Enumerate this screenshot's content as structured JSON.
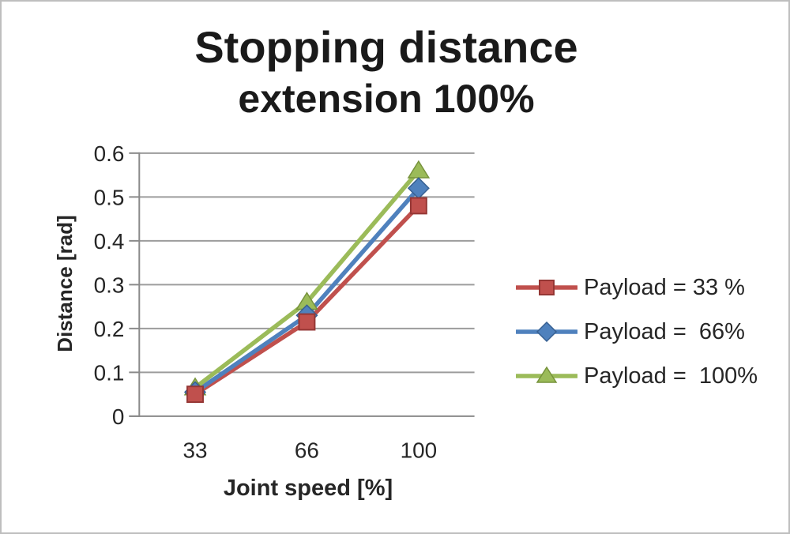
{
  "chart_data": {
    "type": "line",
    "title": "Stopping distance extension 100%",
    "title_line1": "Stopping distance",
    "title_line2": "extension 100%",
    "xlabel": "Joint speed [%]",
    "ylabel": "Distance [rad]",
    "categories": [
      "33",
      "66",
      "100"
    ],
    "ylim": [
      0,
      0.6
    ],
    "y_ticks": [
      0,
      0.1,
      0.2,
      0.3,
      0.4,
      0.5,
      0.6
    ],
    "y_tick_labels": [
      "0",
      "0.1",
      "0.2",
      "0.3",
      "0.4",
      "0.5",
      "0.6"
    ],
    "grid": true,
    "legend_position": "right",
    "series": [
      {
        "name": "Payload = 33 %",
        "marker": "square",
        "color": "#C0504D",
        "marker_border": "#953735",
        "values": [
          0.05,
          0.215,
          0.48
        ]
      },
      {
        "name": "Payload =  66%",
        "marker": "diamond",
        "color": "#4F81BD",
        "marker_border": "#376092",
        "values": [
          0.055,
          0.23,
          0.52
        ]
      },
      {
        "name": "Payload =  100%",
        "marker": "triangle",
        "color": "#9BBB59",
        "marker_border": "#77933C",
        "values": [
          0.065,
          0.26,
          0.56
        ]
      }
    ],
    "colors": {
      "gridline": "#9C9C9C",
      "axis_line": "#8A8A8A",
      "tick_text": "#262626",
      "title_text": "#1A1A1A",
      "page_border": "#BEBEBE",
      "background": "#FFFFFF"
    }
  }
}
